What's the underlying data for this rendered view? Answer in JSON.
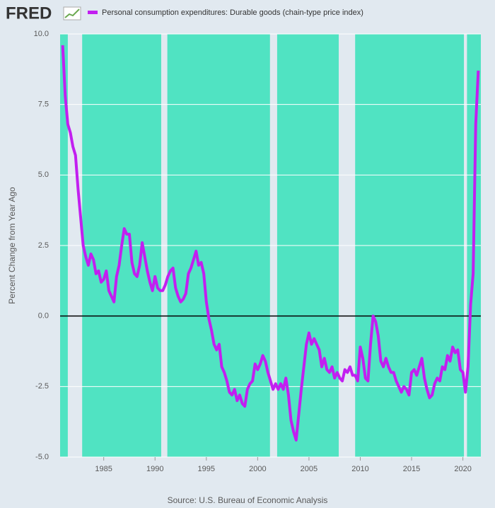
{
  "chart_data": {
    "type": "line",
    "logo": "FRED",
    "ylabel": "Percent Change from Year Ago",
    "source": "Source: U.S. Bureau of Economic Analysis",
    "xlim": [
      1980.75,
      2021.75
    ],
    "ylim": [
      -5,
      10
    ],
    "xticks": [
      1985,
      1990,
      1995,
      2000,
      2005,
      2010,
      2015,
      2020
    ],
    "yticks": [
      {
        "value": -5,
        "label": "-5.0"
      },
      -2.5,
      {
        "value": 0,
        "label": "0.0"
      },
      2.5,
      {
        "value": 5,
        "label": "5.0"
      },
      7.5,
      {
        "value": 10,
        "label": "10.0"
      }
    ],
    "grid": true,
    "plot_color": "#50e3c2",
    "shaded_color": "#e1e9f0",
    "shaded_periods": [
      [
        1981.5,
        1982.9
      ],
      [
        1990.6,
        1991.2
      ],
      [
        2001.2,
        2001.9
      ],
      [
        2007.9,
        2009.5
      ],
      [
        2020.1,
        2020.4
      ]
    ],
    "series": [
      {
        "name": "Personal consumption expenditures: Durable goods (chain-type price index)",
        "color": "#c21ff0",
        "x": [
          1981,
          1981.25,
          1981.5,
          1981.75,
          1982,
          1982.25,
          1982.5,
          1982.75,
          1983,
          1983.25,
          1983.5,
          1983.75,
          1984,
          1984.25,
          1984.5,
          1984.75,
          1985,
          1985.25,
          1985.5,
          1985.75,
          1986,
          1986.25,
          1986.5,
          1986.75,
          1987,
          1987.25,
          1987.5,
          1987.75,
          1988,
          1988.25,
          1988.5,
          1988.75,
          1989,
          1989.25,
          1989.5,
          1989.75,
          1990,
          1990.25,
          1990.5,
          1990.75,
          1991,
          1991.25,
          1991.5,
          1991.75,
          1992,
          1992.25,
          1992.5,
          1992.75,
          1993,
          1993.25,
          1993.5,
          1993.75,
          1994,
          1994.25,
          1994.5,
          1994.75,
          1995,
          1995.25,
          1995.5,
          1995.75,
          1996,
          1996.25,
          1996.5,
          1996.75,
          1997,
          1997.25,
          1997.5,
          1997.75,
          1998,
          1998.25,
          1998.5,
          1998.75,
          1999,
          1999.25,
          1999.5,
          1999.75,
          2000,
          2000.25,
          2000.5,
          2000.75,
          2001,
          2001.25,
          2001.5,
          2001.75,
          2002,
          2002.25,
          2002.5,
          2002.75,
          2003,
          2003.25,
          2003.5,
          2003.75,
          2004,
          2004.25,
          2004.5,
          2004.75,
          2005,
          2005.25,
          2005.5,
          2005.75,
          2006,
          2006.25,
          2006.5,
          2006.75,
          2007,
          2007.25,
          2007.5,
          2007.75,
          2008,
          2008.25,
          2008.5,
          2008.75,
          2009,
          2009.25,
          2009.5,
          2009.75,
          2010,
          2010.25,
          2010.5,
          2010.75,
          2011,
          2011.25,
          2011.5,
          2011.75,
          2012,
          2012.25,
          2012.5,
          2012.75,
          2013,
          2013.25,
          2013.5,
          2013.75,
          2014,
          2014.25,
          2014.5,
          2014.75,
          2015,
          2015.25,
          2015.5,
          2015.75,
          2016,
          2016.25,
          2016.5,
          2016.75,
          2017,
          2017.25,
          2017.5,
          2017.75,
          2018,
          2018.25,
          2018.5,
          2018.75,
          2019,
          2019.25,
          2019.5,
          2019.75,
          2020,
          2020.25,
          2020.5,
          2020.75,
          2021,
          2021.25,
          2021.5
        ],
        "values": [
          9.6,
          7.8,
          6.8,
          6.5,
          6.0,
          5.7,
          4.5,
          3.5,
          2.5,
          2.1,
          1.8,
          2.2,
          2.0,
          1.5,
          1.6,
          1.2,
          1.3,
          1.6,
          0.9,
          0.7,
          0.5,
          1.4,
          1.8,
          2.5,
          3.1,
          2.9,
          2.9,
          1.9,
          1.5,
          1.4,
          1.8,
          2.6,
          2.1,
          1.6,
          1.2,
          0.9,
          1.4,
          1.0,
          0.9,
          0.9,
          1.1,
          1.4,
          1.6,
          1.7,
          1.0,
          0.7,
          0.5,
          0.6,
          0.8,
          1.5,
          1.7,
          2.0,
          2.3,
          1.8,
          1.9,
          1.5,
          0.5,
          -0.1,
          -0.5,
          -1.0,
          -1.2,
          -1.0,
          -1.8,
          -2.0,
          -2.3,
          -2.7,
          -2.8,
          -2.6,
          -3.0,
          -2.8,
          -3.1,
          -3.2,
          -2.6,
          -2.4,
          -2.3,
          -1.7,
          -1.9,
          -1.7,
          -1.4,
          -1.6,
          -2.0,
          -2.3,
          -2.6,
          -2.4,
          -2.6,
          -2.4,
          -2.6,
          -2.2,
          -2.8,
          -3.7,
          -4.1,
          -4.4,
          -3.5,
          -2.6,
          -1.8,
          -1.0,
          -0.6,
          -1.0,
          -0.8,
          -1.0,
          -1.2,
          -1.8,
          -1.5,
          -1.9,
          -2.0,
          -1.8,
          -2.2,
          -2.0,
          -2.2,
          -2.3,
          -1.9,
          -2.0,
          -1.8,
          -2.1,
          -2.1,
          -2.3,
          -1.1,
          -1.5,
          -2.2,
          -2.3,
          -1.0,
          0.0,
          -0.2,
          -0.7,
          -1.6,
          -1.8,
          -1.5,
          -1.8,
          -2.0,
          -2.0,
          -2.3,
          -2.5,
          -2.7,
          -2.5,
          -2.6,
          -2.8,
          -2.0,
          -1.9,
          -2.1,
          -1.8,
          -1.5,
          -2.2,
          -2.6,
          -2.9,
          -2.8,
          -2.4,
          -2.2,
          -2.3,
          -1.8,
          -1.9,
          -1.4,
          -1.6,
          -1.1,
          -1.3,
          -1.2,
          -1.9,
          -2.0,
          -2.7,
          -1.8,
          0.4,
          1.5,
          6.8,
          8.7
        ]
      }
    ]
  }
}
